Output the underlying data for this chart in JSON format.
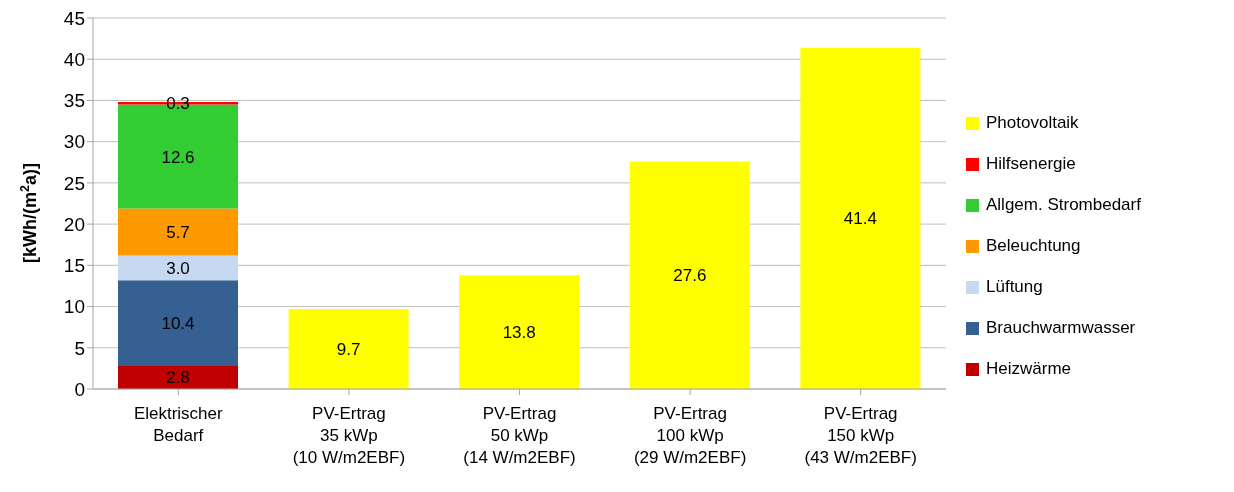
{
  "chart_data": {
    "type": "bar",
    "stacked": true,
    "ylabel": "[kWh/(m$^{2}$a)]",
    "categories": [
      "Elektrischer\nBedarf",
      "PV-Ertrag\n35 kWp\n(10 W/m2EBF)",
      "PV-Ertrag\n50 kWp\n(14 W/m2EBF)",
      "PV-Ertrag\n100 kWp\n(29 W/m2EBF)",
      "PV-Ertrag\n150 kWp\n(43 W/m2EBF)"
    ],
    "series": [
      {
        "name": "Heizwärme",
        "color": "#c00000",
        "values": [
          2.8,
          null,
          null,
          null,
          null
        ],
        "value_labels": [
          "2.8",
          null,
          null,
          null,
          null
        ]
      },
      {
        "name": "Brauchwarmwasser",
        "color": "#376092",
        "values": [
          10.4,
          null,
          null,
          null,
          null
        ],
        "value_labels": [
          "10.4",
          null,
          null,
          null,
          null
        ]
      },
      {
        "name": "Lüftung",
        "color": "#c6d9f1",
        "values": [
          3.0,
          null,
          null,
          null,
          null
        ],
        "value_labels": [
          "3.0",
          null,
          null,
          null,
          null
        ]
      },
      {
        "name": "Beleuchtung",
        "color": "#ff9900",
        "values": [
          5.7,
          null,
          null,
          null,
          null
        ],
        "value_labels": [
          "5.7",
          null,
          null,
          null,
          null
        ]
      },
      {
        "name": "Allgem. Strombedarf",
        "color": "#33cc33",
        "values": [
          12.6,
          null,
          null,
          null,
          null
        ],
        "value_labels": [
          "12.6",
          null,
          null,
          null,
          null
        ]
      },
      {
        "name": "Hilfsenergie",
        "color": "#ff0000",
        "values": [
          0.3,
          null,
          null,
          null,
          null
        ],
        "value_labels": [
          "0.3",
          null,
          null,
          null,
          null
        ]
      },
      {
        "name": "Photovoltaik",
        "color": "#ffff00",
        "values": [
          null,
          9.7,
          13.8,
          27.6,
          41.4
        ],
        "value_labels": [
          null,
          "9.7",
          "13.8",
          "27.6",
          "41.4"
        ]
      }
    ],
    "ylim": [
      0,
      45
    ],
    "yticks": [
      0,
      5,
      10,
      15,
      20,
      25,
      30,
      35,
      40,
      45
    ],
    "grid": "y",
    "legend": "right"
  }
}
